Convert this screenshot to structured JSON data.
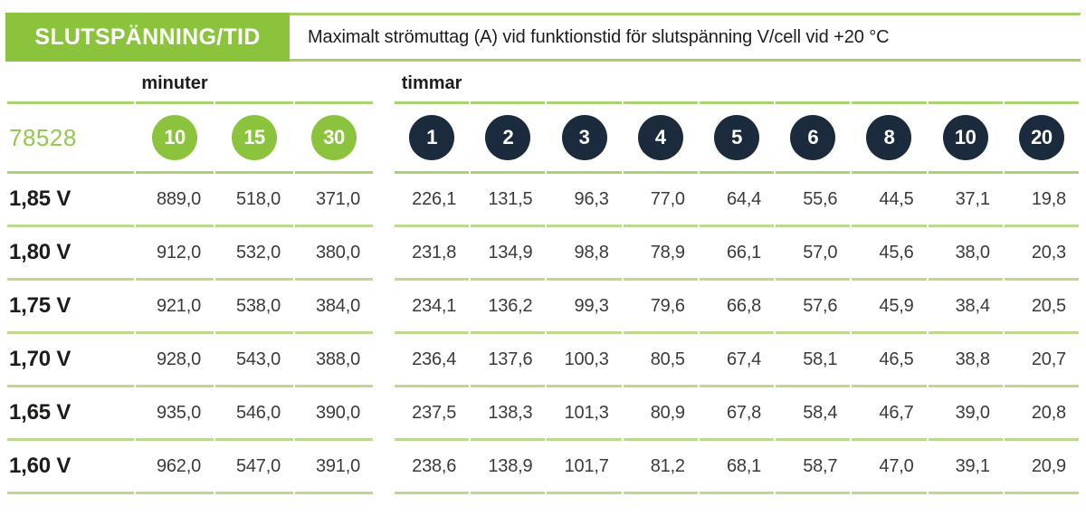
{
  "header": {
    "title": "SLUTSPÄNNING/TID",
    "subtitle": "Maximalt strömuttag (A) vid funktionstid för slutspänning V/cell vid +20 °C"
  },
  "product_code": "78528",
  "groups": {
    "minutes_label": "minuter",
    "hours_label": "timmar"
  },
  "columns": {
    "minutes": [
      "10",
      "15",
      "30"
    ],
    "hours": [
      "1",
      "2",
      "3",
      "4",
      "5",
      "6",
      "8",
      "10",
      "20"
    ]
  },
  "rows": [
    {
      "label": "1,85 V",
      "minutes": [
        "889,0",
        "518,0",
        "371,0"
      ],
      "hours": [
        "226,1",
        "131,5",
        "96,3",
        "77,0",
        "64,4",
        "55,6",
        "44,5",
        "37,1",
        "19,8"
      ]
    },
    {
      "label": "1,80 V",
      "minutes": [
        "912,0",
        "532,0",
        "380,0"
      ],
      "hours": [
        "231,8",
        "134,9",
        "98,8",
        "78,9",
        "66,1",
        "57,0",
        "45,6",
        "38,0",
        "20,3"
      ]
    },
    {
      "label": "1,75 V",
      "minutes": [
        "921,0",
        "538,0",
        "384,0"
      ],
      "hours": [
        "234,1",
        "136,2",
        "99,3",
        "79,6",
        "66,8",
        "57,6",
        "45,9",
        "38,4",
        "20,5"
      ]
    },
    {
      "label": "1,70 V",
      "minutes": [
        "928,0",
        "543,0",
        "388,0"
      ],
      "hours": [
        "236,4",
        "137,6",
        "100,3",
        "80,5",
        "67,4",
        "58,1",
        "46,5",
        "38,8",
        "20,7"
      ]
    },
    {
      "label": "1,65 V",
      "minutes": [
        "935,0",
        "546,0",
        "390,0"
      ],
      "hours": [
        "237,5",
        "138,3",
        "101,3",
        "80,9",
        "67,8",
        "58,4",
        "46,7",
        "39,0",
        "20,8"
      ]
    },
    {
      "label": "1,60 V",
      "minutes": [
        "962,0",
        "547,0",
        "391,0"
      ],
      "hours": [
        "238,6",
        "138,9",
        "101,7",
        "81,2",
        "68,1",
        "58,7",
        "47,0",
        "39,1",
        "20,9"
      ]
    }
  ],
  "colors": {
    "brand_green": "#8bc43c",
    "navy": "#1b2a3c",
    "row_line_green": "#bcd98f",
    "section_line_green": "#a9d271",
    "text_dark": "#1d1d1b",
    "text_data": "#3b3b3a",
    "product_code_green": "#94c84e"
  }
}
